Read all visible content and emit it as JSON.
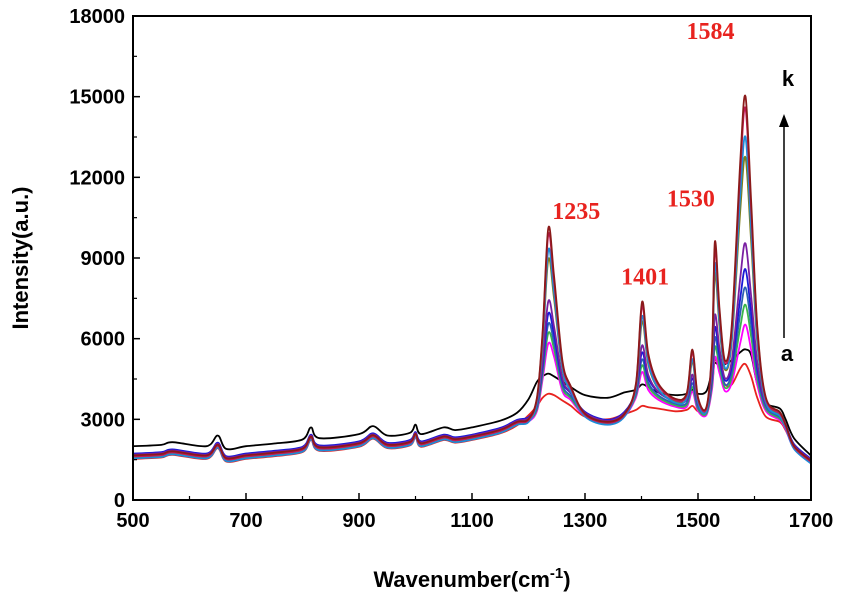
{
  "chart_data": {
    "type": "line",
    "title": "",
    "xlabel": "Wavenumber(cm",
    "xlabel_sup": "-1",
    "xlabel_close": ")",
    "ylabel": "Intensity(a.u.)",
    "xlim": [
      500,
      1700
    ],
    "ylim": [
      0,
      18000
    ],
    "x_ticks": [
      500,
      700,
      900,
      1100,
      1300,
      1500,
      1700
    ],
    "y_ticks": [
      0,
      3000,
      6000,
      9000,
      12000,
      15000,
      18000
    ],
    "x_tick_labels": [
      "500",
      "700",
      "900",
      "1100",
      "1300",
      "1500",
      "1700"
    ],
    "y_tick_labels": [
      "0",
      "3000",
      "6000",
      "9000",
      "12000",
      "15000",
      "18000"
    ],
    "grid": false,
    "legend": "none",
    "annotations": [
      {
        "text": "1235",
        "x": 1235,
        "y": 10000
      },
      {
        "text": "1401",
        "x": 1401,
        "y": 7350
      },
      {
        "text": "1530",
        "x": 1530,
        "y": 10250
      },
      {
        "text": "1584",
        "x": 1584,
        "y": 16700
      }
    ],
    "series_labels": {
      "start": "a",
      "end": "k"
    },
    "trend_arrow": {
      "x": 1595,
      "y_from": 5900,
      "y_to": 14000
    },
    "series_template": {
      "x": [
        500,
        550,
        570,
        630,
        650,
        665,
        700,
        750,
        800,
        815,
        830,
        900,
        925,
        950,
        990,
        1000,
        1010,
        1050,
        1070,
        1100,
        1150,
        1180,
        1200,
        1215,
        1225,
        1235,
        1245,
        1260,
        1275,
        1300,
        1340,
        1370,
        1390,
        1401,
        1412,
        1430,
        1460,
        1480,
        1490,
        1500,
        1515,
        1525,
        1530,
        1538,
        1548,
        1560,
        1575,
        1584,
        1594,
        1605,
        1620,
        1645,
        1655,
        1670,
        1700
      ],
      "base": [
        1650,
        1700,
        1800,
        1650,
        2050,
        1550,
        1650,
        1750,
        1900,
        2350,
        1950,
        2100,
        2400,
        2050,
        2150,
        2450,
        2100,
        2350,
        2250,
        2350,
        2600,
        2900,
        3000,
        3300,
        4200,
        5000,
        4800,
        3900,
        3700,
        3200,
        2900,
        3200,
        3800,
        4300,
        3900,
        3700,
        3500,
        3450,
        3800,
        3300,
        3200,
        3900,
        4500,
        4300,
        3900,
        4000,
        4500,
        4800,
        4500,
        3900,
        3300,
        3000,
        2700,
        2000,
        1450
      ],
      "peak": [
        0,
        0,
        0,
        0,
        0,
        0,
        0,
        0,
        0,
        0,
        0,
        0,
        0,
        0,
        0,
        0,
        0,
        0,
        0,
        0,
        0,
        0,
        0,
        0.1,
        0.4,
        1.0,
        0.7,
        0.25,
        0.1,
        0,
        0,
        0,
        0.1,
        0.6,
        0.3,
        0.12,
        0.05,
        0.1,
        0.35,
        0.1,
        0.05,
        0.35,
        1.0,
        0.55,
        0.25,
        0.5,
        1.6,
        2.0,
        1.3,
        0.5,
        0.1,
        0.05,
        0.02,
        0,
        0
      ]
    },
    "series": [
      {
        "id": "a",
        "color": "#000000",
        "peak_scale": 0,
        "offset": 350,
        "override": {
          "1200": 3750,
          "1215": 4400,
          "1225": 4600,
          "1235": 4700,
          "1245": 4600,
          "1260": 4400,
          "1275": 4200,
          "1300": 3900,
          "1340": 3800,
          "1370": 4000,
          "1390": 4100,
          "1401": 4300,
          "1412": 4200,
          "1430": 4000,
          "1460": 3900,
          "1480": 3950,
          "1490": 4100,
          "1500": 3950,
          "1515": 4050,
          "1525": 4800,
          "1530": 5100,
          "1538": 5000,
          "1548": 5050,
          "1560": 5200,
          "1575": 5500,
          "1584": 5600,
          "1594": 5400,
          "1605": 4300,
          "1620": 3600,
          "1645": 3400,
          "1655": 3000,
          "1670": 2300,
          "1700": 1650
        }
      },
      {
        "id": "b",
        "color": "#e8231f",
        "peak_scale": 0,
        "offset": -120,
        "override": {
          "1200": 3150,
          "1215": 3500,
          "1225": 3800,
          "1235": 3950,
          "1245": 3900,
          "1260": 3700,
          "1275": 3500,
          "1300": 3100,
          "1340": 3000,
          "1370": 3200,
          "1390": 3350,
          "1401": 3500,
          "1412": 3450,
          "1430": 3400,
          "1460": 3300,
          "1480": 3350,
          "1490": 3500,
          "1500": 3300,
          "1515": 3350,
          "1525": 4300,
          "1530": 5200,
          "1538": 4900,
          "1548": 4300,
          "1560": 4300,
          "1575": 4900,
          "1584": 5050,
          "1594": 4600,
          "1605": 3800,
          "1620": 3100,
          "1645": 2900,
          "1655": 2600,
          "1670": 2000,
          "1700": 1400
        }
      },
      {
        "id": "c",
        "color": "#ff00ff",
        "peak_scale": 900,
        "offset": -80
      },
      {
        "id": "d",
        "color": "#3ab54a",
        "peak_scale": 1250,
        "offset": -40
      },
      {
        "id": "e",
        "color": "#2b5fb4",
        "peak_scale": 1550,
        "offset": 0
      },
      {
        "id": "f",
        "color": "#1a1ad6",
        "peak_scale": 1850,
        "offset": 80
      },
      {
        "id": "g",
        "color": "#7a1fa2",
        "peak_scale": 2350,
        "offset": 40
      },
      {
        "id": "h",
        "color": "#7f7f1a",
        "peak_scale": 4000,
        "offset": -60
      },
      {
        "id": "i",
        "color": "#1d8bd8",
        "peak_scale": 4400,
        "offset": -100
      },
      {
        "id": "j",
        "color": "#c2185b",
        "peak_scale": 4900,
        "offset": -30
      },
      {
        "id": "k",
        "color": "#8b1a1a",
        "peak_scale": 5100,
        "offset": 10
      }
    ]
  }
}
